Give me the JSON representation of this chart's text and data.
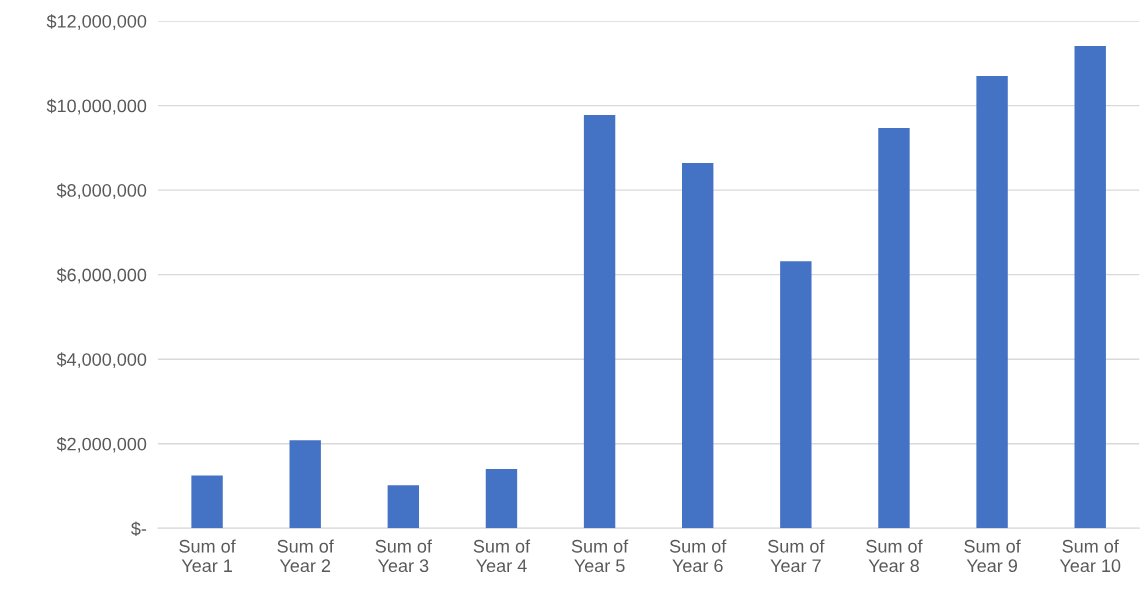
{
  "chart_data": {
    "type": "bar",
    "categories": [
      "Sum of\nYear 1",
      "Sum of\nYear 2",
      "Sum of\nYear 3",
      "Sum of\nYear 4",
      "Sum of\nYear 5",
      "Sum of\nYear 6",
      "Sum of\nYear 7",
      "Sum of\nYear 8",
      "Sum of\nYear 9",
      "Sum of\nYear 10"
    ],
    "values": [
      1250000,
      2080000,
      1020000,
      1400000,
      9780000,
      8640000,
      6320000,
      9470000,
      10700000,
      11410000
    ],
    "color": "#4472c4",
    "ylim": [
      0,
      12000000
    ],
    "yticks": [
      {
        "value": 0,
        "label": "$-"
      },
      {
        "value": 2000000,
        "label": "$2,000,000"
      },
      {
        "value": 4000000,
        "label": "$4,000,000"
      },
      {
        "value": 6000000,
        "label": "$6,000,000"
      },
      {
        "value": 8000000,
        "label": "$8,000,000"
      },
      {
        "value": 10000000,
        "label": "$10,000,000"
      },
      {
        "value": 12000000,
        "label": "$12,000,000"
      }
    ],
    "grid": "y"
  }
}
